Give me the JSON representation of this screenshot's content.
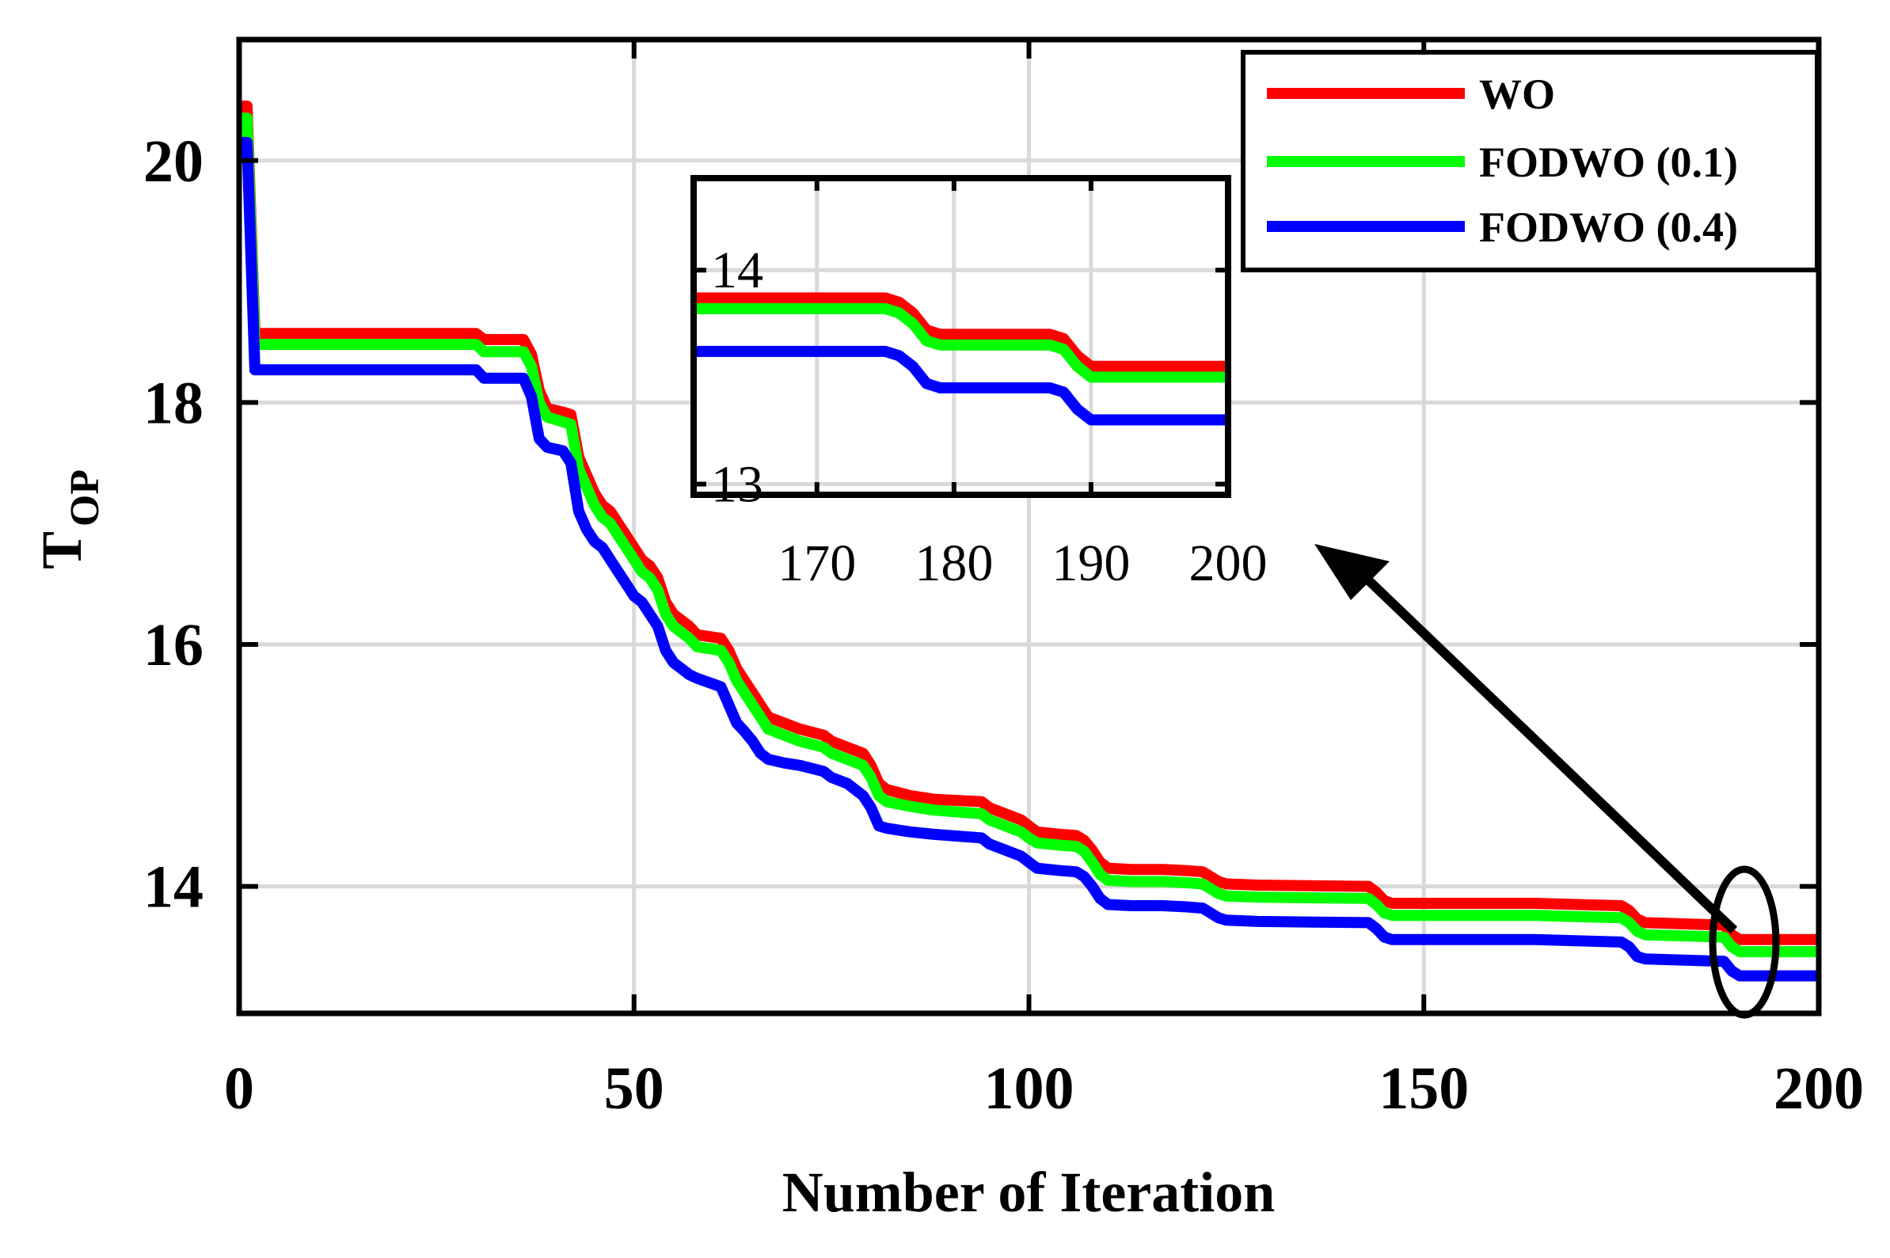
{
  "chart_data": [
    {
      "id": "main",
      "type": "line",
      "title": "",
      "xlabel": "Number of Iteration",
      "ylabel_main": "T",
      "ylabel_sub": "OP",
      "xlim": [
        0,
        200
      ],
      "ylim": [
        12.95,
        21.0
      ],
      "xticks": [
        0,
        50,
        100,
        150,
        200
      ],
      "xtick_labels": [
        "0",
        "50",
        "100",
        "150",
        "200"
      ],
      "yticks": [
        14,
        16,
        18,
        20
      ],
      "ytick_labels": [
        "14",
        "16",
        "18",
        "20"
      ],
      "grid": true,
      "legend_position": "top-right",
      "legend": [
        "WO",
        "FODWO (0.1)",
        "FODWO (0.4)"
      ],
      "series": [
        {
          "name": "WO",
          "color": "#ff0000",
          "points": [
            [
              0,
              20.45
            ],
            [
              1,
              20.45
            ],
            [
              2,
              18.57
            ],
            [
              30,
              18.57
            ],
            [
              31,
              18.52
            ],
            [
              36,
              18.52
            ],
            [
              37,
              18.4
            ],
            [
              38,
              18.1
            ],
            [
              39,
              17.95
            ],
            [
              41,
              17.92
            ],
            [
              42,
              17.9
            ],
            [
              43,
              17.55
            ],
            [
              44,
              17.4
            ],
            [
              45,
              17.25
            ],
            [
              46,
              17.15
            ],
            [
              47,
              17.1
            ],
            [
              48,
              17.0
            ],
            [
              49,
              16.9
            ],
            [
              50,
              16.8
            ],
            [
              51,
              16.7
            ],
            [
              52,
              16.65
            ],
            [
              53,
              16.55
            ],
            [
              54,
              16.35
            ],
            [
              55,
              16.25
            ],
            [
              57,
              16.15
            ],
            [
              58,
              16.08
            ],
            [
              61,
              16.05
            ],
            [
              62,
              15.95
            ],
            [
              63,
              15.8
            ],
            [
              64,
              15.7
            ],
            [
              65,
              15.6
            ],
            [
              66,
              15.5
            ],
            [
              67,
              15.4
            ],
            [
              69,
              15.35
            ],
            [
              71,
              15.3
            ],
            [
              74,
              15.25
            ],
            [
              75,
              15.2
            ],
            [
              77,
              15.15
            ],
            [
              79,
              15.1
            ],
            [
              80,
              15.0
            ],
            [
              81,
              14.85
            ],
            [
              82,
              14.8
            ],
            [
              85,
              14.75
            ],
            [
              88,
              14.72
            ],
            [
              94,
              14.7
            ],
            [
              95,
              14.65
            ],
            [
              97,
              14.6
            ],
            [
              99,
              14.55
            ],
            [
              100,
              14.5
            ],
            [
              101,
              14.45
            ],
            [
              104,
              14.43
            ],
            [
              106,
              14.42
            ],
            [
              107,
              14.38
            ],
            [
              108,
              14.3
            ],
            [
              109,
              14.2
            ],
            [
              110,
              14.15
            ],
            [
              113,
              14.14
            ],
            [
              117,
              14.14
            ],
            [
              120,
              14.13
            ],
            [
              122,
              14.12
            ],
            [
              123,
              14.08
            ],
            [
              124,
              14.04
            ],
            [
              125,
              14.02
            ],
            [
              129,
              14.01
            ],
            [
              143,
              14.0
            ],
            [
              144,
              13.95
            ],
            [
              145,
              13.88
            ],
            [
              146,
              13.86
            ],
            [
              164,
              13.86
            ],
            [
              175,
              13.84
            ],
            [
              176,
              13.8
            ],
            [
              177,
              13.73
            ],
            [
              178,
              13.7
            ],
            [
              188,
              13.68
            ],
            [
              189,
              13.6
            ],
            [
              190,
              13.56
            ],
            [
              200,
              13.56
            ]
          ]
        },
        {
          "name": "FODWO (0.1)",
          "color": "#00ff00",
          "points": [
            [
              0,
              20.35
            ],
            [
              1,
              20.35
            ],
            [
              2,
              18.48
            ],
            [
              30,
              18.48
            ],
            [
              31,
              18.42
            ],
            [
              36,
              18.42
            ],
            [
              37,
              18.3
            ],
            [
              38,
              18.0
            ],
            [
              39,
              17.88
            ],
            [
              41,
              17.84
            ],
            [
              42,
              17.82
            ],
            [
              43,
              17.45
            ],
            [
              44,
              17.3
            ],
            [
              45,
              17.15
            ],
            [
              46,
              17.05
            ],
            [
              47,
              17.0
            ],
            [
              48,
              16.9
            ],
            [
              49,
              16.8
            ],
            [
              50,
              16.7
            ],
            [
              51,
              16.6
            ],
            [
              52,
              16.55
            ],
            [
              53,
              16.45
            ],
            [
              54,
              16.25
            ],
            [
              55,
              16.15
            ],
            [
              57,
              16.05
            ],
            [
              58,
              15.98
            ],
            [
              61,
              15.95
            ],
            [
              62,
              15.85
            ],
            [
              63,
              15.7
            ],
            [
              64,
              15.6
            ],
            [
              65,
              15.5
            ],
            [
              66,
              15.4
            ],
            [
              67,
              15.3
            ],
            [
              69,
              15.25
            ],
            [
              71,
              15.2
            ],
            [
              74,
              15.15
            ],
            [
              75,
              15.1
            ],
            [
              77,
              15.05
            ],
            [
              79,
              15.0
            ],
            [
              80,
              14.9
            ],
            [
              81,
              14.75
            ],
            [
              82,
              14.7
            ],
            [
              85,
              14.66
            ],
            [
              88,
              14.63
            ],
            [
              94,
              14.6
            ],
            [
              95,
              14.55
            ],
            [
              97,
              14.5
            ],
            [
              99,
              14.45
            ],
            [
              100,
              14.4
            ],
            [
              101,
              14.36
            ],
            [
              104,
              14.34
            ],
            [
              106,
              14.33
            ],
            [
              107,
              14.29
            ],
            [
              108,
              14.2
            ],
            [
              109,
              14.1
            ],
            [
              110,
              14.05
            ],
            [
              113,
              14.04
            ],
            [
              117,
              14.04
            ],
            [
              120,
              14.03
            ],
            [
              122,
              14.02
            ],
            [
              123,
              13.98
            ],
            [
              124,
              13.94
            ],
            [
              125,
              13.92
            ],
            [
              129,
              13.91
            ],
            [
              143,
              13.9
            ],
            [
              144,
              13.85
            ],
            [
              145,
              13.78
            ],
            [
              146,
              13.76
            ],
            [
              164,
              13.76
            ],
            [
              175,
              13.74
            ],
            [
              176,
              13.7
            ],
            [
              177,
              13.63
            ],
            [
              178,
              13.6
            ],
            [
              188,
              13.58
            ],
            [
              189,
              13.5
            ],
            [
              190,
              13.46
            ],
            [
              200,
              13.46
            ]
          ]
        },
        {
          "name": "FODWO (0.4)",
          "color": "#0000ff",
          "points": [
            [
              0,
              20.15
            ],
            [
              1,
              20.15
            ],
            [
              2,
              18.27
            ],
            [
              30,
              18.27
            ],
            [
              31,
              18.2
            ],
            [
              36,
              18.2
            ],
            [
              37,
              18.05
            ],
            [
              38,
              17.7
            ],
            [
              39,
              17.63
            ],
            [
              41,
              17.6
            ],
            [
              42,
              17.5
            ],
            [
              43,
              17.1
            ],
            [
              44,
              16.95
            ],
            [
              45,
              16.85
            ],
            [
              46,
              16.8
            ],
            [
              47,
              16.7
            ],
            [
              48,
              16.6
            ],
            [
              49,
              16.5
            ],
            [
              50,
              16.4
            ],
            [
              51,
              16.35
            ],
            [
              52,
              16.25
            ],
            [
              53,
              16.15
            ],
            [
              54,
              15.95
            ],
            [
              55,
              15.85
            ],
            [
              57,
              15.75
            ],
            [
              58,
              15.72
            ],
            [
              61,
              15.65
            ],
            [
              62,
              15.5
            ],
            [
              63,
              15.35
            ],
            [
              64,
              15.28
            ],
            [
              65,
              15.2
            ],
            [
              66,
              15.1
            ],
            [
              67,
              15.05
            ],
            [
              69,
              15.02
            ],
            [
              71,
              15.0
            ],
            [
              74,
              14.95
            ],
            [
              75,
              14.9
            ],
            [
              77,
              14.85
            ],
            [
              79,
              14.75
            ],
            [
              80,
              14.65
            ],
            [
              81,
              14.5
            ],
            [
              82,
              14.48
            ],
            [
              85,
              14.45
            ],
            [
              88,
              14.43
            ],
            [
              94,
              14.4
            ],
            [
              95,
              14.35
            ],
            [
              97,
              14.3
            ],
            [
              99,
              14.25
            ],
            [
              100,
              14.2
            ],
            [
              101,
              14.15
            ],
            [
              104,
              14.13
            ],
            [
              106,
              14.12
            ],
            [
              107,
              14.08
            ],
            [
              108,
              14.0
            ],
            [
              109,
              13.9
            ],
            [
              110,
              13.85
            ],
            [
              113,
              13.84
            ],
            [
              117,
              13.84
            ],
            [
              120,
              13.83
            ],
            [
              122,
              13.82
            ],
            [
              123,
              13.78
            ],
            [
              124,
              13.74
            ],
            [
              125,
              13.72
            ],
            [
              129,
              13.71
            ],
            [
              143,
              13.7
            ],
            [
              144,
              13.65
            ],
            [
              145,
              13.58
            ],
            [
              146,
              13.56
            ],
            [
              164,
              13.56
            ],
            [
              175,
              13.54
            ],
            [
              176,
              13.5
            ],
            [
              177,
              13.42
            ],
            [
              178,
              13.4
            ],
            [
              188,
              13.38
            ],
            [
              189,
              13.3
            ],
            [
              190,
              13.26
            ],
            [
              200,
              13.26
            ]
          ]
        }
      ]
    },
    {
      "id": "inset",
      "type": "line",
      "title": "",
      "xlabel": "",
      "ylabel": "",
      "xlim": [
        161,
        200
      ],
      "ylim": [
        12.95,
        14.43
      ],
      "xticks": [
        170,
        180,
        190,
        200
      ],
      "xtick_labels": [
        "170",
        "180",
        "190",
        "200"
      ],
      "yticks": [
        13,
        14
      ],
      "ytick_labels": [
        "13",
        "14"
      ],
      "grid": true,
      "series": [
        {
          "name": "WO",
          "color": "#ff0000",
          "points": [
            [
              161,
              13.87
            ],
            [
              175,
              13.87
            ],
            [
              176,
              13.85
            ],
            [
              177,
              13.8
            ],
            [
              178,
              13.72
            ],
            [
              179,
              13.7
            ],
            [
              187,
              13.7
            ],
            [
              188,
              13.68
            ],
            [
              189,
              13.6
            ],
            [
              190,
              13.55
            ],
            [
              200,
              13.55
            ]
          ]
        },
        {
          "name": "FODWO (0.1)",
          "color": "#00ff00",
          "points": [
            [
              161,
              13.82
            ],
            [
              175,
              13.82
            ],
            [
              176,
              13.8
            ],
            [
              177,
              13.75
            ],
            [
              178,
              13.67
            ],
            [
              179,
              13.65
            ],
            [
              187,
              13.65
            ],
            [
              188,
              13.63
            ],
            [
              189,
              13.55
            ],
            [
              190,
              13.5
            ],
            [
              200,
              13.5
            ]
          ]
        },
        {
          "name": "FODWO (0.4)",
          "color": "#0000ff",
          "points": [
            [
              161,
              13.62
            ],
            [
              175,
              13.62
            ],
            [
              176,
              13.6
            ],
            [
              177,
              13.55
            ],
            [
              178,
              13.47
            ],
            [
              179,
              13.45
            ],
            [
              187,
              13.45
            ],
            [
              188,
              13.43
            ],
            [
              189,
              13.35
            ],
            [
              190,
              13.3
            ],
            [
              200,
              13.3
            ]
          ]
        }
      ]
    }
  ]
}
